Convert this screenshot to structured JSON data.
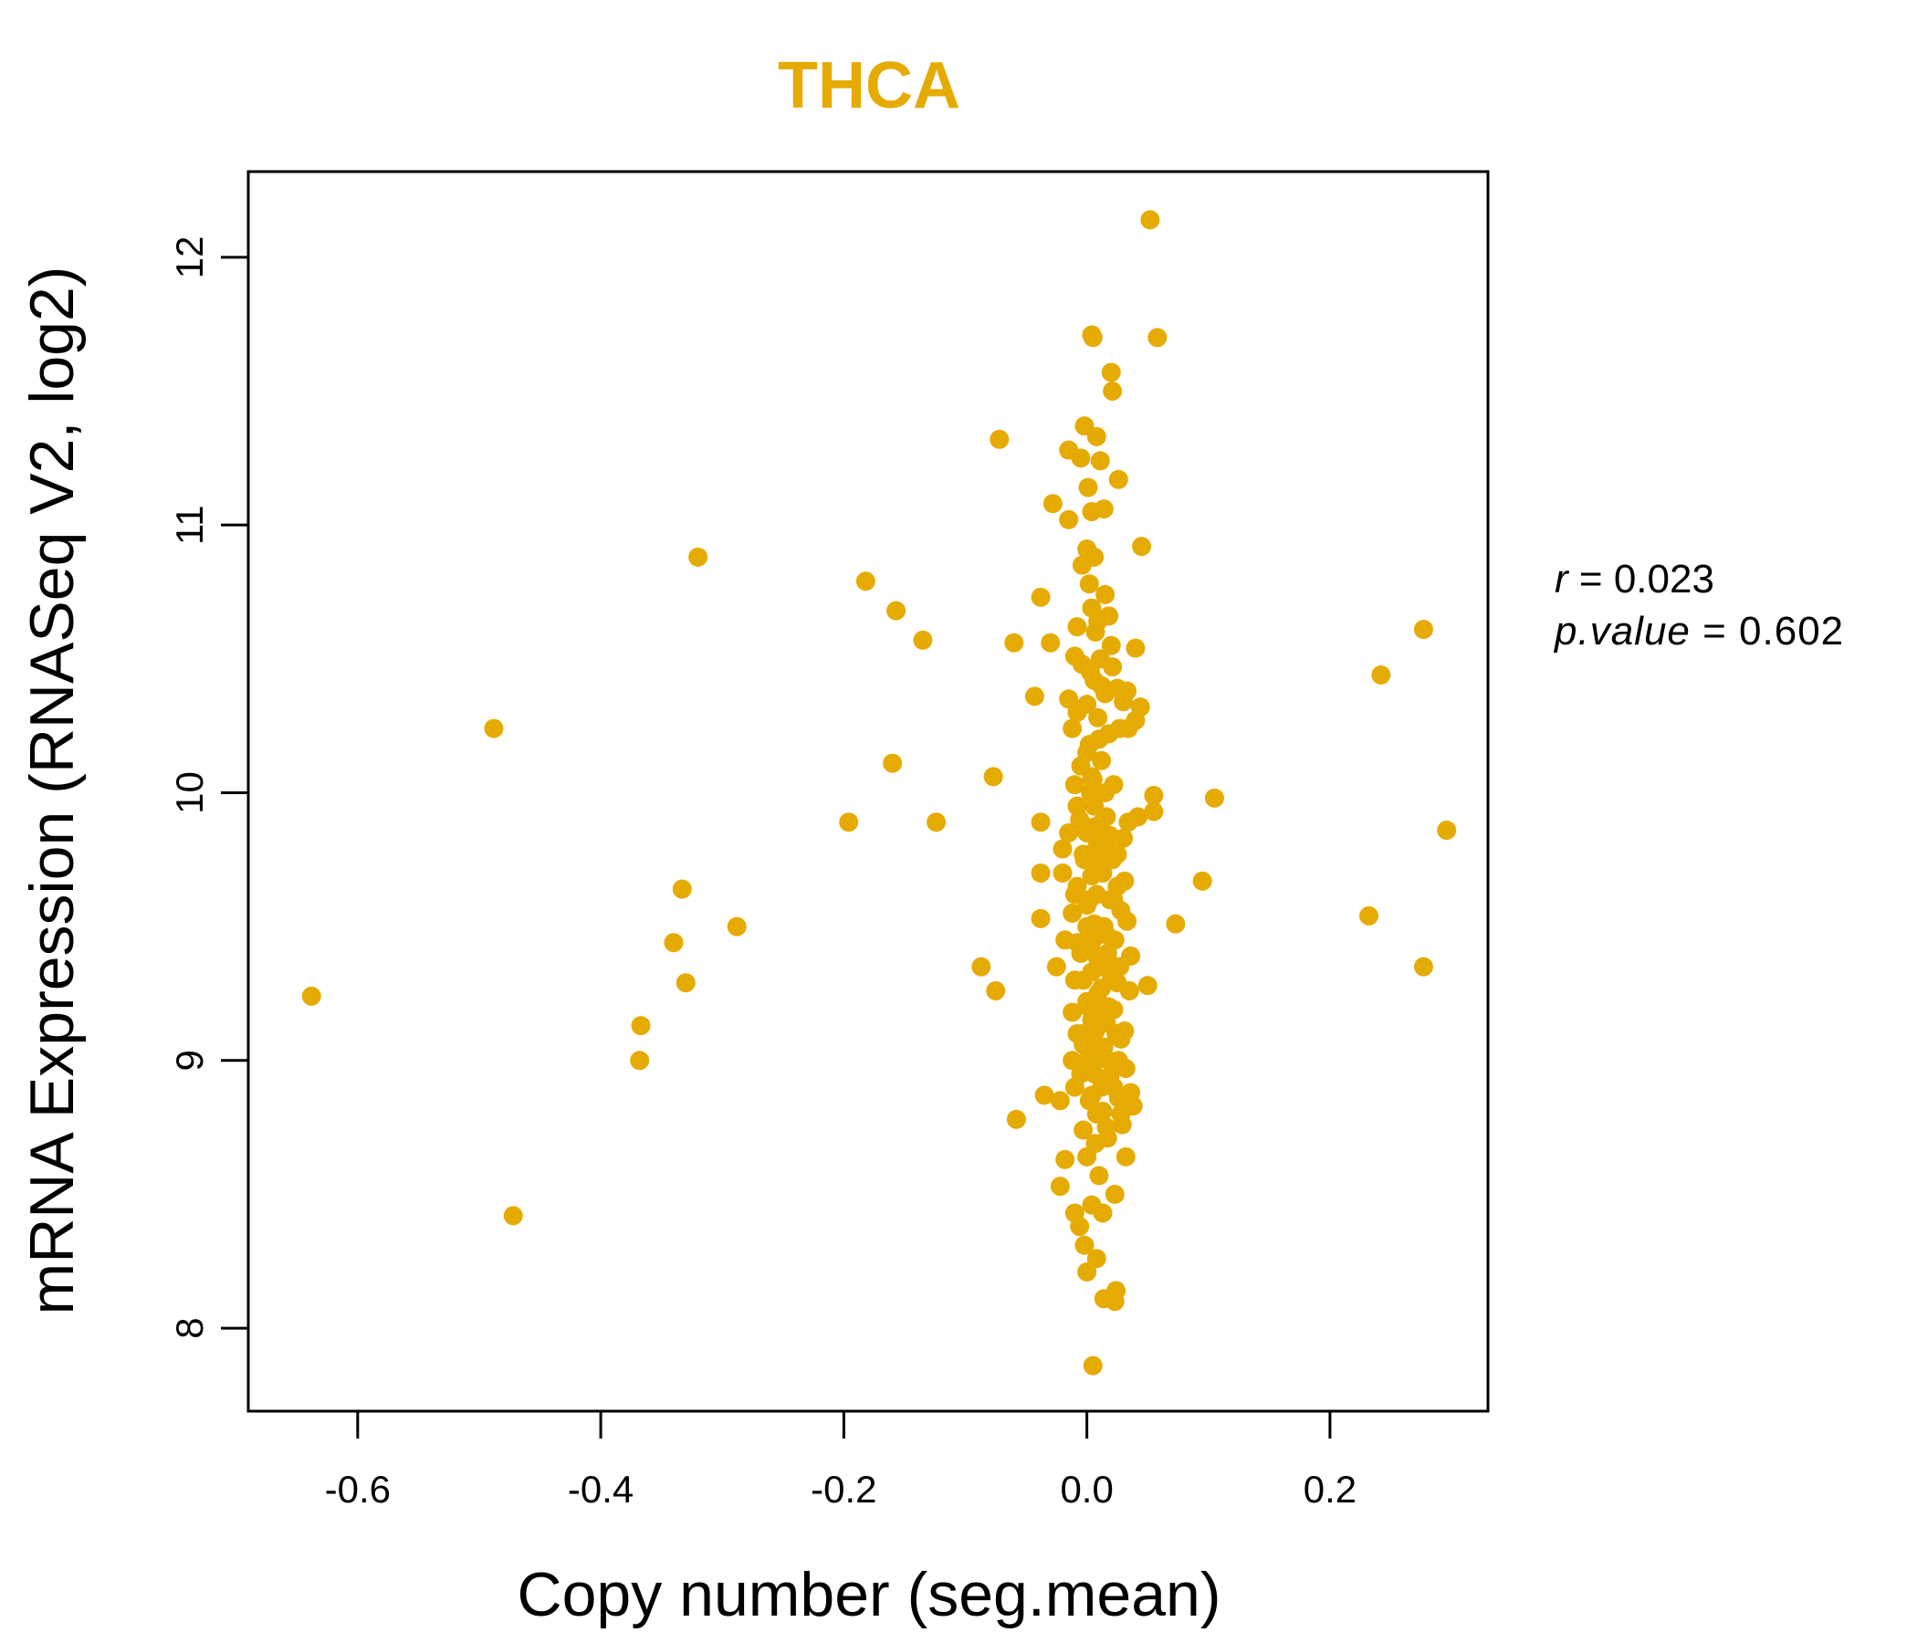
{
  "colors": {
    "accent": "#E6AB02",
    "axis": "#000000"
  },
  "chart_data": {
    "type": "scatter",
    "title": "THCA",
    "xlabel": "Copy number (seg.mean)",
    "ylabel": "mRNA Expression (RNASeq V2, log2)",
    "xlim": [
      -0.69,
      0.33
    ],
    "ylim": [
      7.69,
      12.32
    ],
    "xticks": [
      -0.6,
      -0.4,
      -0.2,
      0.0,
      0.2
    ],
    "xtick_labels": [
      "-0.6",
      "-0.4",
      "-0.2",
      "0.0",
      "0.2"
    ],
    "yticks": [
      8,
      9,
      10,
      11,
      12
    ],
    "ytick_labels": [
      "8",
      "9",
      "10",
      "11",
      "12"
    ],
    "stats": {
      "r_label": "r",
      "r_value": "0.023",
      "p_label": "p.value",
      "p_value": "0.602"
    },
    "points": [
      [
        -0.638,
        9.24
      ],
      [
        -0.488,
        10.24
      ],
      [
        -0.472,
        8.42
      ],
      [
        -0.367,
        9.13
      ],
      [
        -0.368,
        9.0
      ],
      [
        -0.34,
        9.44
      ],
      [
        -0.333,
        9.64
      ],
      [
        -0.33,
        9.29
      ],
      [
        -0.32,
        10.88
      ],
      [
        -0.288,
        9.5
      ],
      [
        -0.196,
        9.89
      ],
      [
        -0.182,
        10.79
      ],
      [
        -0.157,
        10.68
      ],
      [
        -0.16,
        10.11
      ],
      [
        -0.135,
        10.57
      ],
      [
        -0.124,
        9.89
      ],
      [
        -0.087,
        9.35
      ],
      [
        -0.077,
        10.06
      ],
      [
        -0.075,
        9.26
      ],
      [
        -0.072,
        11.32
      ],
      [
        -0.06,
        10.56
      ],
      [
        -0.058,
        8.78
      ],
      [
        -0.043,
        10.36
      ],
      [
        -0.038,
        10.73
      ],
      [
        -0.038,
        9.89
      ],
      [
        -0.038,
        9.7
      ],
      [
        -0.038,
        9.53
      ],
      [
        -0.035,
        8.87
      ],
      [
        -0.03,
        10.56
      ],
      [
        -0.028,
        11.08
      ],
      [
        -0.025,
        9.35
      ],
      [
        -0.022,
        8.85
      ],
      [
        -0.022,
        8.53
      ],
      [
        -0.02,
        9.79
      ],
      [
        -0.018,
        8.63
      ],
      [
        -0.015,
        11.28
      ],
      [
        -0.015,
        11.02
      ],
      [
        -0.015,
        10.35
      ],
      [
        -0.012,
        10.24
      ],
      [
        -0.01,
        10.51
      ],
      [
        -0.01,
        10.03
      ],
      [
        -0.01,
        9.62
      ],
      [
        -0.012,
        9.18
      ],
      [
        -0.01,
        8.43
      ],
      [
        -0.008,
        10.62
      ],
      [
        -0.008,
        9.95
      ],
      [
        -0.008,
        9.44
      ],
      [
        -0.006,
        8.38
      ],
      [
        -0.005,
        11.25
      ],
      [
        -0.004,
        10.85
      ],
      [
        -0.004,
        10.48
      ],
      [
        -0.003,
        9.77
      ],
      [
        -0.003,
        9.06
      ],
      [
        -0.003,
        8.74
      ],
      [
        -0.002,
        11.37
      ],
      [
        -0.002,
        8.31
      ],
      [
        0.0,
        10.91
      ],
      [
        0.0,
        10.33
      ],
      [
        0.0,
        9.58
      ],
      [
        0.0,
        9.22
      ],
      [
        0.0,
        8.64
      ],
      [
        0.0,
        8.21
      ],
      [
        0.001,
        11.14
      ],
      [
        0.002,
        10.78
      ],
      [
        0.002,
        10.18
      ],
      [
        0.003,
        9.87
      ],
      [
        0.003,
        9.42
      ],
      [
        0.003,
        8.97
      ],
      [
        0.004,
        11.71
      ],
      [
        0.004,
        11.05
      ],
      [
        0.004,
        10.69
      ],
      [
        0.004,
        10.06
      ],
      [
        0.004,
        9.69
      ],
      [
        0.004,
        9.33
      ],
      [
        0.004,
        8.87
      ],
      [
        0.004,
        8.46
      ],
      [
        0.005,
        7.86
      ],
      [
        0.005,
        11.7
      ],
      [
        0.006,
        10.88
      ],
      [
        0.006,
        10.42
      ],
      [
        0.006,
        9.95
      ],
      [
        0.006,
        9.51
      ],
      [
        0.007,
        9.11
      ],
      [
        0.007,
        8.69
      ],
      [
        0.008,
        8.26
      ],
      [
        0.008,
        11.33
      ],
      [
        0.009,
        10.64
      ],
      [
        0.009,
        10.28
      ],
      [
        0.009,
        9.81
      ],
      [
        0.009,
        9.38
      ],
      [
        0.01,
        9.02
      ],
      [
        0.01,
        8.57
      ],
      [
        0.011,
        11.24
      ],
      [
        0.011,
        10.5
      ],
      [
        0.012,
        10.12
      ],
      [
        0.012,
        9.73
      ],
      [
        0.012,
        9.27
      ],
      [
        0.013,
        8.81
      ],
      [
        0.013,
        8.43
      ],
      [
        0.014,
        8.11
      ],
      [
        0.014,
        11.06
      ],
      [
        0.015,
        10.74
      ],
      [
        0.015,
        10.37
      ],
      [
        0.016,
        9.91
      ],
      [
        0.016,
        9.47
      ],
      [
        0.016,
        9.14
      ],
      [
        0.017,
        8.71
      ],
      [
        0.018,
        10.66
      ],
      [
        0.018,
        10.22
      ],
      [
        0.019,
        9.84
      ],
      [
        0.019,
        9.36
      ],
      [
        0.019,
        8.94
      ],
      [
        0.02,
        11.57
      ],
      [
        0.021,
        11.5
      ],
      [
        0.021,
        10.47
      ],
      [
        0.022,
        10.03
      ],
      [
        0.022,
        9.6
      ],
      [
        0.022,
        9.19
      ],
      [
        0.023,
        8.5
      ],
      [
        0.023,
        8.1
      ],
      [
        0.024,
        8.14
      ],
      [
        0.025,
        10.39
      ],
      [
        0.025,
        9.77
      ],
      [
        0.025,
        9.29
      ],
      [
        0.026,
        8.86
      ],
      [
        0.026,
        11.17
      ],
      [
        0.027,
        10.24
      ],
      [
        0.028,
        9.56
      ],
      [
        0.028,
        9.08
      ],
      [
        0.029,
        8.76
      ],
      [
        0.03,
        10.34
      ],
      [
        0.03,
        9.83
      ],
      [
        0.031,
        9.67
      ],
      [
        0.031,
        9.11
      ],
      [
        0.032,
        8.64
      ],
      [
        0.032,
        8.97
      ],
      [
        0.033,
        10.38
      ],
      [
        0.033,
        9.52
      ],
      [
        0.034,
        10.24
      ],
      [
        0.034,
        9.89
      ],
      [
        0.035,
        9.26
      ],
      [
        0.036,
        9.39
      ],
      [
        0.036,
        8.88
      ],
      [
        0.038,
        8.83
      ],
      [
        0.04,
        10.27
      ],
      [
        0.04,
        10.54
      ],
      [
        0.042,
        9.91
      ],
      [
        0.044,
        10.32
      ],
      [
        0.045,
        10.92
      ],
      [
        0.05,
        9.28
      ],
      [
        0.052,
        12.14
      ],
      [
        0.055,
        9.99
      ],
      [
        0.055,
        9.93
      ],
      [
        0.058,
        11.7
      ],
      [
        0.073,
        9.51
      ],
      [
        0.095,
        9.67
      ],
      [
        0.105,
        9.98
      ],
      [
        0.232,
        9.54
      ],
      [
        0.242,
        10.44
      ],
      [
        0.277,
        10.61
      ],
      [
        0.277,
        9.35
      ],
      [
        0.296,
        9.86
      ],
      [
        -0.02,
        9.7
      ],
      [
        -0.018,
        9.45
      ],
      [
        -0.015,
        9.85
      ],
      [
        -0.012,
        9.55
      ],
      [
        -0.01,
        9.3
      ],
      [
        -0.008,
        9.65
      ],
      [
        -0.006,
        9.9
      ],
      [
        -0.005,
        9.4
      ],
      [
        -0.004,
        9.1
      ],
      [
        -0.002,
        9.75
      ],
      [
        0.0,
        9.5
      ],
      [
        0.0,
        9.85
      ],
      [
        0.001,
        9.2
      ],
      [
        0.002,
        9.6
      ],
      [
        0.003,
        10.0
      ],
      [
        0.004,
        9.15
      ],
      [
        0.005,
        9.45
      ],
      [
        0.006,
        9.78
      ],
      [
        0.007,
        9.0
      ],
      [
        0.008,
        9.62
      ],
      [
        0.009,
        9.25
      ],
      [
        0.01,
        9.88
      ],
      [
        0.011,
        9.35
      ],
      [
        0.012,
        9.05
      ],
      [
        0.013,
        9.7
      ],
      [
        0.014,
        9.5
      ],
      [
        0.015,
        9.2
      ],
      [
        0.016,
        9.8
      ],
      [
        0.017,
        9.4
      ],
      [
        0.018,
        9.0
      ],
      [
        0.019,
        9.6
      ],
      [
        0.02,
        9.3
      ],
      [
        0.021,
        9.75
      ],
      [
        0.022,
        8.9
      ],
      [
        0.023,
        9.45
      ],
      [
        0.024,
        9.1
      ],
      [
        0.025,
        9.65
      ],
      [
        0.026,
        9.0
      ],
      [
        0.027,
        9.35
      ],
      [
        0.028,
        8.8
      ],
      [
        -0.012,
        9.0
      ],
      [
        -0.01,
        8.9
      ],
      [
        -0.008,
        9.1
      ],
      [
        -0.005,
        8.95
      ],
      [
        -0.003,
        9.3
      ],
      [
        0.0,
        9.0
      ],
      [
        0.002,
        8.85
      ],
      [
        0.004,
        9.05
      ],
      [
        0.006,
        8.95
      ],
      [
        0.008,
        8.8
      ],
      [
        0.01,
        9.15
      ],
      [
        0.012,
        8.9
      ],
      [
        0.014,
        9.05
      ],
      [
        0.016,
        8.75
      ],
      [
        0.018,
        9.2
      ],
      [
        -0.005,
        10.1
      ],
      [
        0.0,
        10.15
      ],
      [
        0.005,
        10.05
      ],
      [
        0.01,
        10.2
      ],
      [
        0.015,
        10.0
      ],
      [
        -0.008,
        10.3
      ],
      [
        0.003,
        10.45
      ],
      [
        0.012,
        10.4
      ],
      [
        0.02,
        10.55
      ],
      [
        0.007,
        10.6
      ]
    ]
  }
}
